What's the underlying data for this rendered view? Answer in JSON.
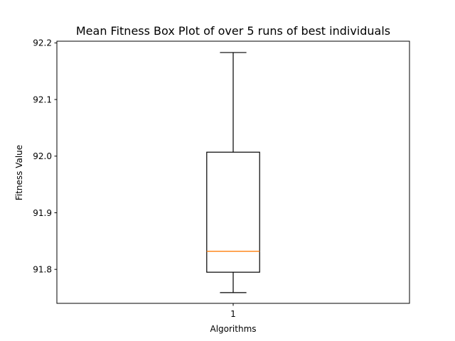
{
  "chart_data": {
    "type": "boxplot",
    "title": "Mean Fitness Box Plot of over 5 runs of best individuals",
    "xlabel": "Algorithms",
    "ylabel": "Fitness Value",
    "categories": [
      "1"
    ],
    "boxes": [
      {
        "category": "1",
        "whisker_low": 91.759,
        "q1": 91.795,
        "median": 91.832,
        "q3": 92.007,
        "whisker_high": 92.183
      }
    ],
    "ylim": [
      91.74,
      92.203
    ],
    "xlim": [
      0.5,
      1.5
    ],
    "yticks": [
      91.8,
      91.9,
      92.0,
      92.1,
      92.2
    ],
    "ytick_labels": [
      "91.8",
      "91.9",
      "92.0",
      "92.1",
      "92.2"
    ],
    "xticks": [
      1
    ],
    "xtick_labels": [
      "1"
    ],
    "grid": false,
    "colors": {
      "box": "#000000",
      "median": "#ff7f0e",
      "background": "#ffffff"
    }
  }
}
